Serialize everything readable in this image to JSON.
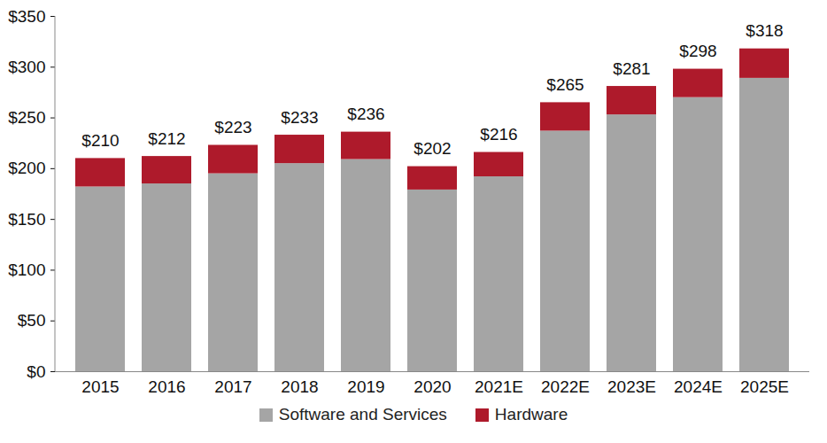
{
  "chart_data": {
    "type": "bar",
    "stacked": true,
    "categories": [
      "2015",
      "2016",
      "2017",
      "2018",
      "2019",
      "2020",
      "2021E",
      "2022E",
      "2023E",
      "2024E",
      "2025E"
    ],
    "series": [
      {
        "name": "Software and Services",
        "color": "#a5a5a5",
        "values": [
          182,
          185,
          195,
          205,
          209,
          179,
          192,
          237,
          253,
          270,
          289
        ]
      },
      {
        "name": "Hardware",
        "color": "#ae1a2b",
        "values": [
          28,
          27,
          28,
          28,
          27,
          23,
          24,
          28,
          28,
          28,
          29
        ]
      }
    ],
    "totals": [
      210,
      212,
      223,
      233,
      236,
      202,
      216,
      265,
      281,
      298,
      318
    ],
    "total_labels": [
      "$210",
      "$212",
      "$223",
      "$233",
      "$236",
      "$202",
      "$216",
      "$265",
      "$281",
      "$298",
      "$318"
    ],
    "ylim": [
      0,
      350
    ],
    "yticks": [
      {
        "value": 0,
        "label": "$0"
      },
      {
        "value": 50,
        "label": "$50"
      },
      {
        "value": 100,
        "label": "$100"
      },
      {
        "value": 150,
        "label": "$150"
      },
      {
        "value": 200,
        "label": "$200"
      },
      {
        "value": 250,
        "label": "$250"
      },
      {
        "value": 300,
        "label": "$300"
      },
      {
        "value": 350,
        "label": "$350"
      }
    ],
    "grid": false,
    "legend": "bottom"
  }
}
